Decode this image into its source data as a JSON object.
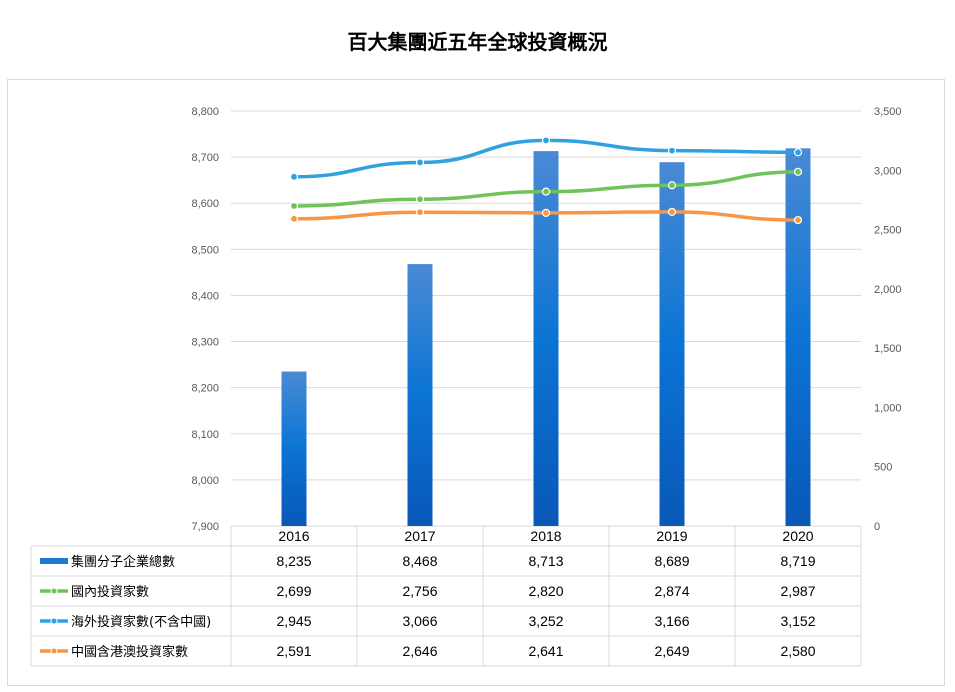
{
  "title": "百大集團近五年全球投資概況",
  "chart_data": {
    "type": "bar+line",
    "categories": [
      "2016",
      "2017",
      "2018",
      "2019",
      "2020"
    ],
    "y_left": {
      "min": 7900,
      "max": 8800,
      "step": 100,
      "ticks": [
        "7,900",
        "8,000",
        "8,100",
        "8,200",
        "8,300",
        "8,400",
        "8,500",
        "8,600",
        "8,700",
        "8,800"
      ]
    },
    "y_right": {
      "min": 0,
      "max": 3500,
      "step": 500,
      "ticks": [
        "0",
        "500",
        "1,000",
        "1,500",
        "2,000",
        "2,500",
        "3,000",
        "3,500"
      ]
    },
    "grid": true,
    "legend": "data-table",
    "series": [
      {
        "name": "集團分子企業總數",
        "type": "bar",
        "axis": "left",
        "color": "#1f78d1",
        "values": [
          8235,
          8468,
          8713,
          8689,
          8719
        ],
        "labels": [
          "8,235",
          "8,468",
          "8,713",
          "8,689",
          "8,719"
        ]
      },
      {
        "name": "國內投資家數",
        "type": "line",
        "axis": "right",
        "color": "#70c35a",
        "values": [
          2699,
          2756,
          2820,
          2874,
          2987
        ],
        "labels": [
          "2,699",
          "2,756",
          "2,820",
          "2,874",
          "2,987"
        ]
      },
      {
        "name": "海外投資家數(不含中國)",
        "type": "line",
        "axis": "right",
        "color": "#2ea1e0",
        "values": [
          2945,
          3066,
          3252,
          3166,
          3152
        ],
        "labels": [
          "2,945",
          "3,066",
          "3,252",
          "3,166",
          "3,152"
        ]
      },
      {
        "name": "中國含港澳投資家數",
        "type": "line",
        "axis": "right",
        "color": "#f79646",
        "values": [
          2591,
          2646,
          2641,
          2649,
          2580
        ],
        "labels": [
          "2,591",
          "2,646",
          "2,641",
          "2,649",
          "2,580"
        ]
      }
    ]
  }
}
